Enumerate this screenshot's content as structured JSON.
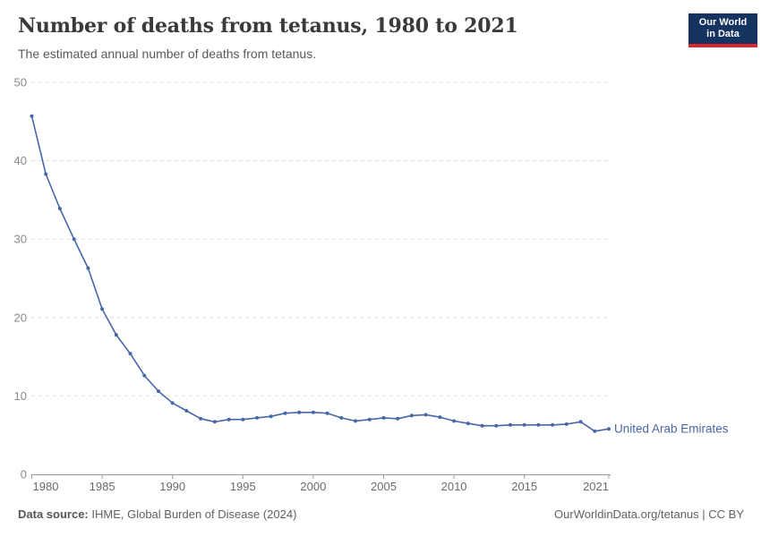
{
  "header": {
    "title": "Number of deaths from tetanus, 1980 to 2021",
    "subtitle": "The estimated annual number of deaths from tetanus."
  },
  "logo": {
    "line1": "Our World",
    "line2": "in Data",
    "bg_color": "#143360",
    "accent_color": "#d8272e"
  },
  "chart_data": {
    "type": "line",
    "title": "Number of deaths from tetanus, 1980 to 2021",
    "xlabel": "",
    "ylabel": "",
    "xlim": [
      1980,
      2021
    ],
    "ylim": [
      0,
      50
    ],
    "x_ticks": [
      1980,
      1985,
      1990,
      1995,
      2000,
      2005,
      2010,
      2015,
      2021
    ],
    "y_ticks": [
      0,
      10,
      20,
      30,
      40,
      50
    ],
    "grid": "horizontal-dashed",
    "legend": "end-of-line-label",
    "x": [
      1980,
      1981,
      1982,
      1983,
      1984,
      1985,
      1986,
      1987,
      1988,
      1989,
      1990,
      1991,
      1992,
      1993,
      1994,
      1995,
      1996,
      1997,
      1998,
      1999,
      2000,
      2001,
      2002,
      2003,
      2004,
      2005,
      2006,
      2007,
      2008,
      2009,
      2010,
      2011,
      2012,
      2013,
      2014,
      2015,
      2016,
      2017,
      2018,
      2019,
      2020,
      2021
    ],
    "series": [
      {
        "name": "United Arab Emirates",
        "color": "#4767A8",
        "values": [
          45.7,
          38.3,
          33.9,
          30.0,
          26.3,
          21.1,
          17.8,
          15.4,
          12.6,
          10.6,
          9.1,
          8.1,
          7.1,
          6.7,
          7.0,
          7.0,
          7.2,
          7.4,
          7.8,
          7.9,
          7.9,
          7.8,
          7.2,
          6.8,
          7.0,
          7.2,
          7.1,
          7.5,
          7.6,
          7.3,
          6.8,
          6.5,
          6.2,
          6.2,
          6.3,
          6.3,
          6.3,
          6.3,
          6.4,
          6.7,
          5.5,
          5.8
        ]
      }
    ]
  },
  "colors": {
    "gridline": "#dcdcdc",
    "axis_line": "#9a9a9a",
    "y_tick_label": "#8a8a8a",
    "x_tick_label": "#6b6b6b"
  },
  "footer": {
    "source_label": "Data source:",
    "source_value": " IHME, Global Burden of Disease (2024)",
    "right_text": "OurWorldinData.org/tetanus | CC BY"
  }
}
